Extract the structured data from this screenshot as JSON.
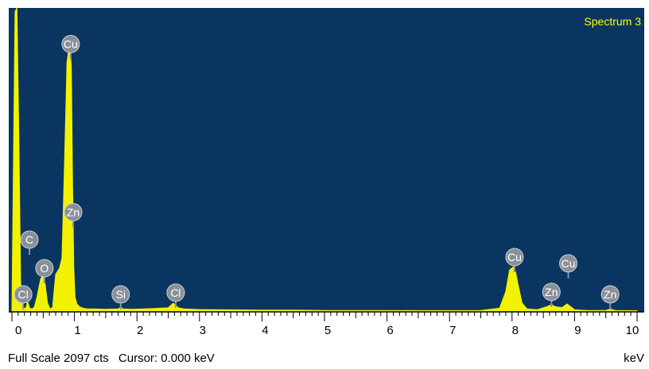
{
  "colors": {
    "plot_background": "#0a3560",
    "spectrum_fill": "#f2f200",
    "spectrum_title": "#ffff00",
    "element_marker": "#8a909a",
    "axis": "#000000"
  },
  "status": {
    "full_scale": "Full Scale 2097 cts",
    "cursor": "Cursor: 0.000 keV",
    "unit": "keV"
  },
  "chart_data": {
    "type": "area",
    "title": "Spectrum 3",
    "xlabel": "keV",
    "ylabel": "",
    "xlim": [
      0,
      10
    ],
    "ylim": [
      0,
      2097
    ],
    "grid": false,
    "x_ticks": [
      "0",
      "1",
      "2",
      "3",
      "4",
      "5",
      "6",
      "7",
      "8",
      "9",
      "10"
    ],
    "series": [
      {
        "x": [
          0.0,
          0.05,
          0.08,
          0.11,
          0.14,
          0.18,
          0.22,
          0.25,
          0.28,
          0.32,
          0.36,
          0.4,
          0.46,
          0.5,
          0.53,
          0.57,
          0.61,
          0.65,
          0.7,
          0.76,
          0.8,
          0.84,
          0.88,
          0.91,
          0.93,
          0.95,
          0.97,
          0.99,
          1.01,
          1.04,
          1.08,
          1.14,
          1.2,
          1.3,
          1.5,
          1.7,
          1.74,
          1.78,
          1.9,
          2.2,
          2.5,
          2.58,
          2.62,
          2.66,
          2.75,
          3.0,
          3.5,
          4.0,
          4.5,
          5.0,
          5.5,
          6.0,
          6.5,
          7.0,
          7.5,
          7.8,
          7.9,
          7.96,
          8.02,
          8.06,
          8.1,
          8.16,
          8.24,
          8.4,
          8.55,
          8.63,
          8.7,
          8.8,
          8.88,
          8.94,
          9.0,
          9.2,
          9.5,
          9.57,
          9.65,
          10.0
        ],
        "values": [
          0,
          2070,
          2097,
          1250,
          200,
          30,
          22,
          70,
          30,
          18,
          35,
          100,
          230,
          250,
          195,
          60,
          20,
          30,
          260,
          300,
          370,
          1000,
          1720,
          1815,
          1840,
          1680,
          900,
          300,
          100,
          55,
          35,
          25,
          20,
          20,
          18,
          20,
          32,
          20,
          18,
          22,
          28,
          60,
          45,
          28,
          20,
          16,
          14,
          12,
          12,
          10,
          10,
          10,
          9,
          9,
          10,
          25,
          140,
          290,
          310,
          270,
          180,
          60,
          20,
          15,
          35,
          50,
          35,
          30,
          55,
          35,
          15,
          10,
          10,
          20,
          10,
          8
        ]
      }
    ],
    "element_markers": [
      {
        "label": "Zn",
        "energy": 0.98
      },
      {
        "label": "Cu",
        "energy": 0.94
      },
      {
        "label": "O",
        "energy": 0.52
      },
      {
        "label": "C",
        "energy": 0.28
      },
      {
        "label": "Cl",
        "energy": 0.18
      },
      {
        "label": "Si",
        "energy": 1.74
      },
      {
        "label": "Cl",
        "energy": 2.62
      },
      {
        "label": "Cu",
        "energy": 8.04
      },
      {
        "label": "Zn",
        "energy": 8.63
      },
      {
        "label": "Cu",
        "energy": 8.9
      },
      {
        "label": "Zn",
        "energy": 9.57
      }
    ]
  }
}
